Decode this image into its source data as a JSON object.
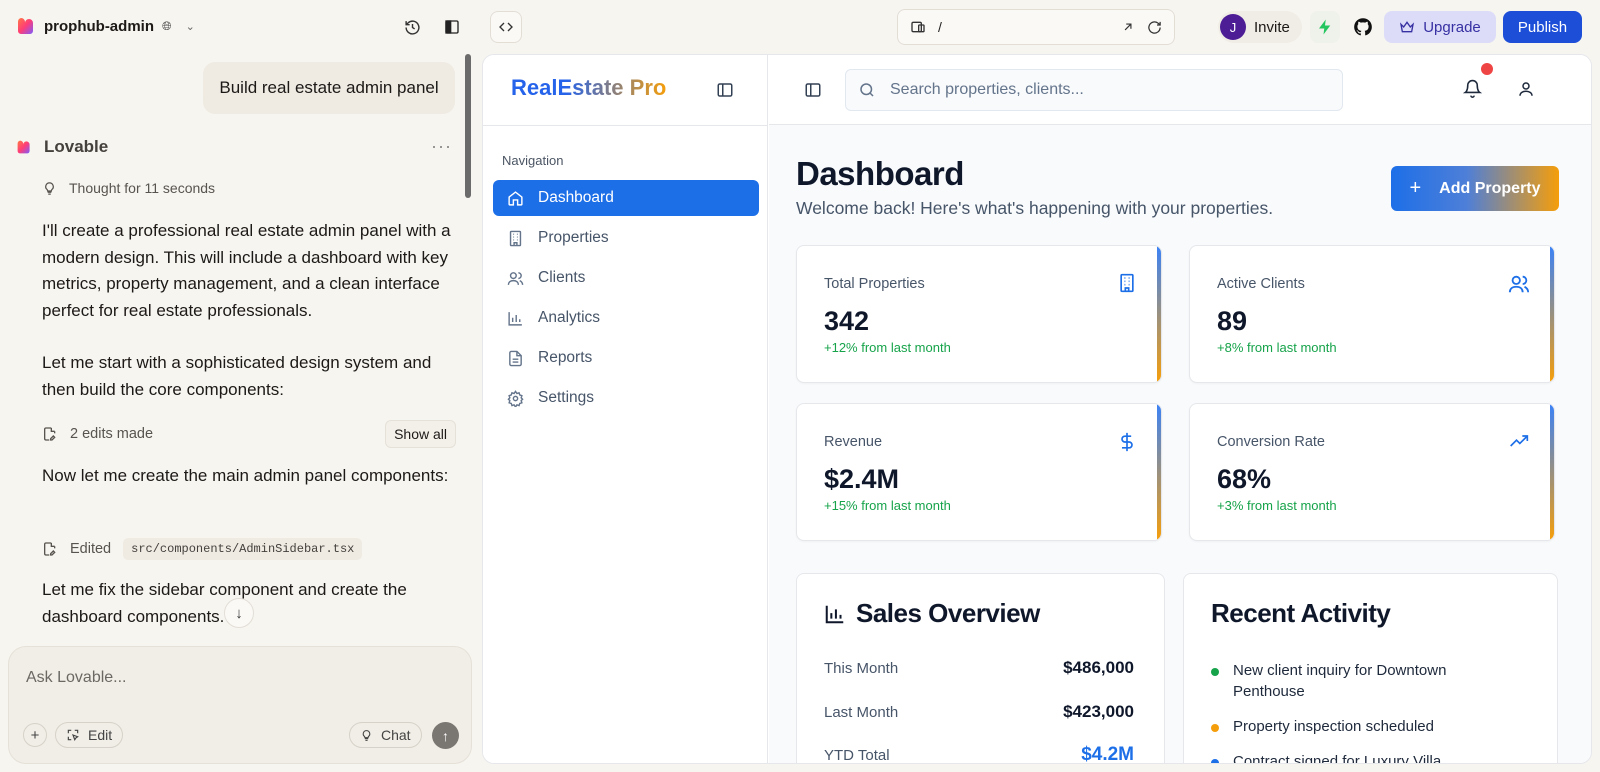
{
  "topbar": {
    "project_name": "prophub-admin",
    "url_path": "/",
    "invite_initial": "J",
    "invite_label": "Invite",
    "upgrade_label": "Upgrade",
    "publish_label": "Publish"
  },
  "chat": {
    "user_message": "Build real estate admin panel",
    "assistant_name": "Lovable",
    "thought": "Thought for 11 seconds",
    "paragraph_1": "I'll create a professional real estate admin panel with a modern design. This will include a dashboard with key metrics, property management, and a clean interface perfect for real estate professionals.",
    "paragraph_2": "Let me start with a sophisticated design system and then build the core components:",
    "edits_made": "2 edits made",
    "show_all": "Show all",
    "paragraph_3": "Now let me create the main admin panel components:",
    "edited_label": "Edited",
    "edited_file": "src/components/AdminSidebar.tsx",
    "paragraph_4": "Let me fix the sidebar component and create the dashboard components.",
    "composer_placeholder": "Ask Lovable...",
    "edit_label": "Edit",
    "chat_label": "Chat"
  },
  "app": {
    "logo_part1": "RealEstate",
    "logo_part2": "Pro",
    "nav_title": "Navigation",
    "nav_items": [
      {
        "label": "Dashboard",
        "icon": "home-icon"
      },
      {
        "label": "Properties",
        "icon": "building-icon"
      },
      {
        "label": "Clients",
        "icon": "users-icon"
      },
      {
        "label": "Analytics",
        "icon": "bar-chart-icon"
      },
      {
        "label": "Reports",
        "icon": "file-text-icon"
      },
      {
        "label": "Settings",
        "icon": "gear-icon"
      }
    ],
    "search_placeholder": "Search properties, clients...",
    "title": "Dashboard",
    "subtitle": "Welcome back! Here's what's happening with your properties.",
    "add_property": "Add Property",
    "stats": [
      {
        "label": "Total Properties",
        "value": "342",
        "change": "+12% from last month",
        "icon": "building-icon"
      },
      {
        "label": "Active Clients",
        "value": "89",
        "change": "+8% from last month",
        "icon": "users-icon"
      },
      {
        "label": "Revenue",
        "value": "$2.4M",
        "change": "+15% from last month",
        "icon": "dollar-icon"
      },
      {
        "label": "Conversion Rate",
        "value": "68%",
        "change": "+3% from last month",
        "icon": "trending-up-icon"
      }
    ],
    "sales": {
      "title": "Sales Overview",
      "rows": [
        {
          "label": "This Month",
          "value": "$486,000"
        },
        {
          "label": "Last Month",
          "value": "$423,000"
        },
        {
          "label": "YTD Total",
          "value": "$4.2M"
        }
      ]
    },
    "activity": {
      "title": "Recent Activity",
      "items": [
        {
          "text": "New client inquiry for Downtown Penthouse",
          "color": "#16a34a"
        },
        {
          "text": "Property inspection scheduled",
          "color": "#f59e0b"
        },
        {
          "text": "Contract signed for Luxury Villa",
          "color": "#1d6fe8"
        }
      ]
    }
  },
  "colors": {
    "primary": "#1d6fe8",
    "accent": "#f59e0b",
    "positive": "#16a34a",
    "publish": "#1d4ed8"
  }
}
